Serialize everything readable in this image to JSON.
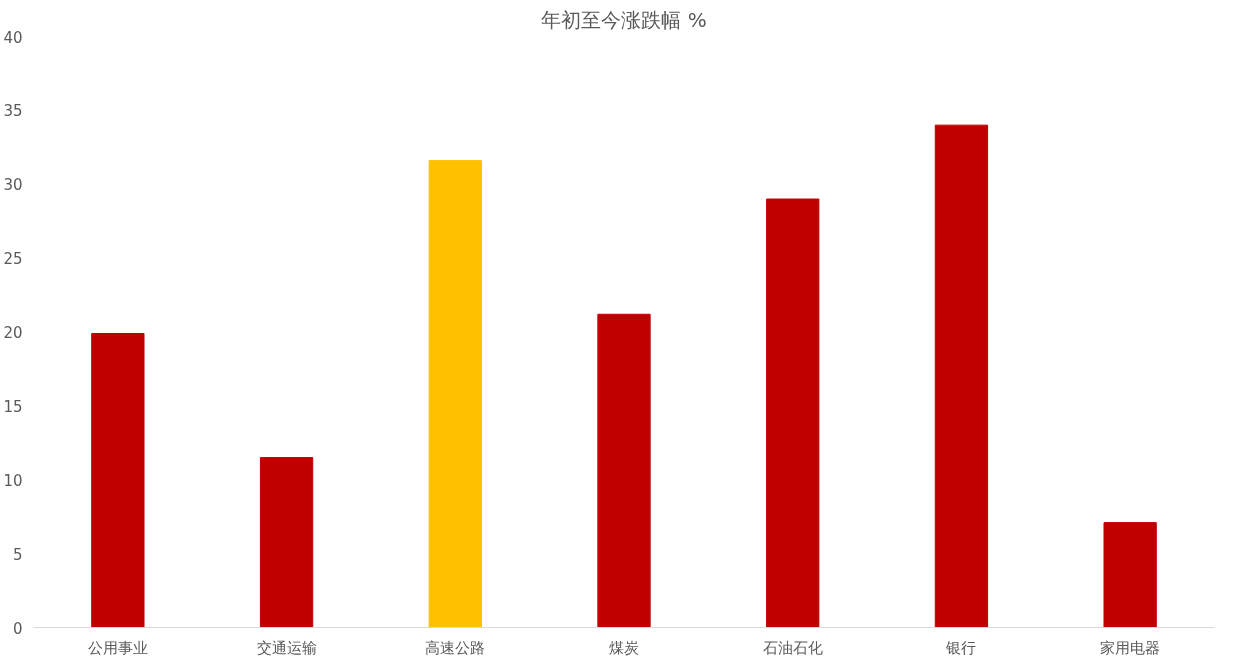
{
  "chart_data": {
    "type": "bar",
    "title": "年初至今涨跌幅 %",
    "categories": [
      "公用事业",
      "交通运输",
      "高速公路",
      "煤炭",
      "石油石化",
      "银行",
      "家用电器"
    ],
    "values": [
      19.9,
      11.5,
      31.6,
      21.2,
      29.0,
      34.0,
      7.1
    ],
    "colors": [
      "#c00000",
      "#c00000",
      "#ffc000",
      "#c00000",
      "#c00000",
      "#c00000",
      "#c00000"
    ],
    "ylim": [
      0,
      40
    ],
    "yticks": [
      0,
      5,
      10,
      15,
      20,
      25,
      30,
      35,
      40
    ],
    "grid": false
  }
}
